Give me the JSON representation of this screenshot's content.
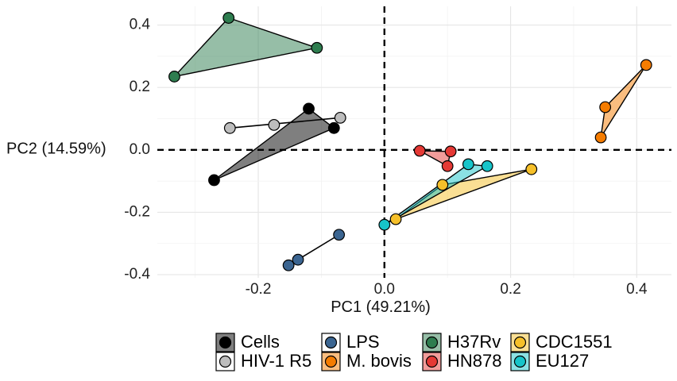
{
  "chart_data": {
    "type": "scatter",
    "xlabel": "PC1 (49.21%)",
    "ylabel": "PC2 (14.59%)",
    "xlim": [
      -0.36,
      0.455
    ],
    "ylim": [
      -0.41,
      0.46
    ],
    "xticks": [
      -0.2,
      0.0,
      0.2,
      0.4
    ],
    "xtick_labels": [
      "-0.2",
      "0.0",
      "0.2",
      "0.4"
    ],
    "yticks": [
      -0.4,
      -0.2,
      0.0,
      0.2,
      0.4
    ],
    "ytick_labels": [
      "-0.4",
      "-0.2",
      "0.0",
      "0.2",
      "0.4"
    ],
    "grid": true,
    "reference_lines": {
      "x": 0,
      "y": 0,
      "style": "dashed"
    },
    "legend_position": "bottom",
    "series": [
      {
        "name": "Cells",
        "color": "#000000",
        "hull": true,
        "points": [
          [
            -0.27,
            -0.097
          ],
          [
            -0.12,
            0.132
          ],
          [
            -0.08,
            0.07
          ]
        ],
        "lines": []
      },
      {
        "name": "HIV-1 R5",
        "color": "#bdbdbd",
        "hull": false,
        "points": [
          [
            -0.245,
            0.07
          ],
          [
            -0.175,
            0.08
          ],
          [
            -0.07,
            0.103
          ]
        ],
        "lines": [
          [
            [
              -0.245,
              0.07
            ],
            [
              -0.07,
              0.103
            ]
          ]
        ]
      },
      {
        "name": "LPS",
        "color": "#3b6591",
        "hull": false,
        "points": [
          [
            -0.152,
            -0.37
          ],
          [
            -0.137,
            -0.352
          ],
          [
            -0.072,
            -0.272
          ]
        ],
        "lines": [
          [
            [
              -0.152,
              -0.37
            ],
            [
              -0.072,
              -0.272
            ]
          ]
        ]
      },
      {
        "name": "M. bovis",
        "color": "#f57c00",
        "hull": true,
        "points": [
          [
            0.343,
            0.04
          ],
          [
            0.35,
            0.137
          ],
          [
            0.415,
            0.272
          ]
        ],
        "lines": []
      },
      {
        "name": "H37Rv",
        "color": "#2e7d4f",
        "hull": true,
        "points": [
          [
            -0.333,
            0.235
          ],
          [
            -0.247,
            0.423
          ],
          [
            -0.107,
            0.327
          ]
        ],
        "lines": []
      },
      {
        "name": "HN878",
        "color": "#e53935",
        "hull": true,
        "points": [
          [
            0.056,
            -0.003
          ],
          [
            0.1,
            -0.052
          ],
          [
            0.105,
            -0.005
          ]
        ],
        "lines": []
      },
      {
        "name": "CDC1551",
        "color": "#f6c02a",
        "hull": true,
        "points": [
          [
            0.092,
            -0.112
          ],
          [
            0.018,
            -0.222
          ],
          [
            0.233,
            -0.062
          ]
        ],
        "lines": []
      },
      {
        "name": "EU127",
        "color": "#17c4c9",
        "hull": true,
        "points": [
          [
            0.0,
            -0.24
          ],
          [
            0.133,
            -0.046
          ],
          [
            0.163,
            -0.052
          ]
        ],
        "lines": []
      }
    ],
    "legend_order": [
      "Cells",
      "HIV-1 R5",
      "LPS",
      "M. bovis",
      "H37Rv",
      "HN878",
      "CDC1551",
      "EU127"
    ]
  }
}
